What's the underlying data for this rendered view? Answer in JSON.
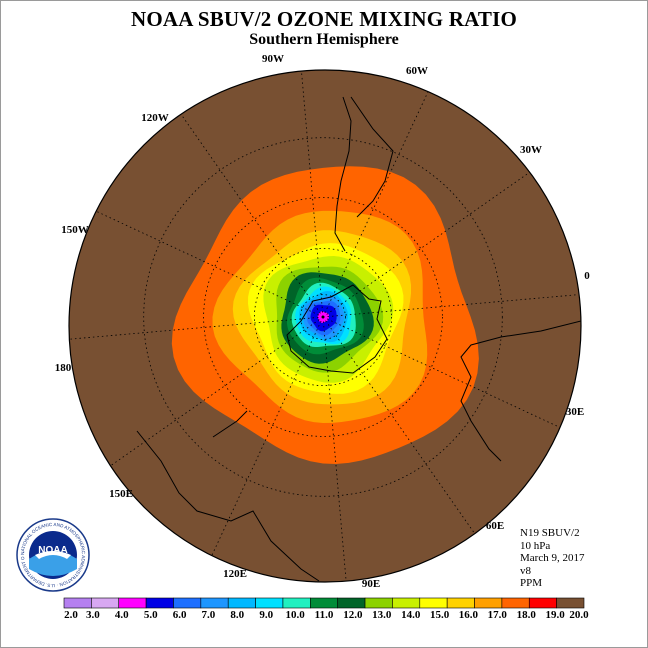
{
  "title": "NOAA SBUV/2 OZONE MIXING RATIO",
  "subtitle": "Southern Hemisphere",
  "info": {
    "instrument": "N19 SBUV/2",
    "level": "10 hPa",
    "date": "March 9, 2017",
    "version": "v8",
    "units": "PPM"
  },
  "logo": {
    "text": "NOAA",
    "ring_text": "NATIONAL OCEANIC AND ATMOSPHERIC ADMINISTRATION · U.S. DEPARTMENT OF COMMERCE"
  },
  "longitude_labels": [
    "90W",
    "60W",
    "30W",
    "0",
    "30E",
    "60E",
    "90E",
    "120E",
    "150E",
    "180",
    "150W",
    "120W"
  ],
  "colorbar": {
    "ticks": [
      "2.0",
      "3.0",
      "4.0",
      "5.0",
      "6.0",
      "7.0",
      "8.0",
      "9.0",
      "10.0",
      "11.0",
      "12.0",
      "13.0",
      "14.0",
      "15.0",
      "16.0",
      "17.0",
      "18.0",
      "19.0",
      "20.0"
    ],
    "colors": [
      "#b580f0",
      "#d8a8f2",
      "#ff00ff",
      "#0000e6",
      "#1e6fff",
      "#1e96ff",
      "#00b8ff",
      "#00e0ff",
      "#20f0c0",
      "#008c38",
      "#006428",
      "#8cd200",
      "#c8f000",
      "#ffff00",
      "#ffd200",
      "#ffa000",
      "#ff6400",
      "#ff0000",
      "#785032"
    ]
  },
  "chart_data": {
    "type": "heatmap",
    "projection": "south polar stereographic",
    "field": "ozone mixing ratio",
    "units": "PPM",
    "level": "10 hPa",
    "date": "March 9, 2017",
    "levels": [
      2.0,
      3.0,
      4.0,
      5.0,
      6.0,
      7.0,
      8.0,
      9.0,
      10.0,
      11.0,
      12.0,
      13.0,
      14.0,
      15.0,
      16.0,
      17.0,
      18.0,
      19.0,
      20.0
    ],
    "approx_value_by_latitude": [
      {
        "lat": -90,
        "value": 4.5
      },
      {
        "lat": -85,
        "value": 5.5
      },
      {
        "lat": -80,
        "value": 8.5
      },
      {
        "lat": -75,
        "value": 11.5
      },
      {
        "lat": -70,
        "value": 13.0
      },
      {
        "lat": -65,
        "value": 14.5
      },
      {
        "lat": -60,
        "value": 15.5
      },
      {
        "lat": -55,
        "value": 16.5
      },
      {
        "lat": -50,
        "value": 17.5
      },
      {
        "lat": -40,
        "value": 18.5
      },
      {
        "lat": -20,
        "value": 19.5
      },
      {
        "lat": 0,
        "value": 20.0
      }
    ]
  }
}
